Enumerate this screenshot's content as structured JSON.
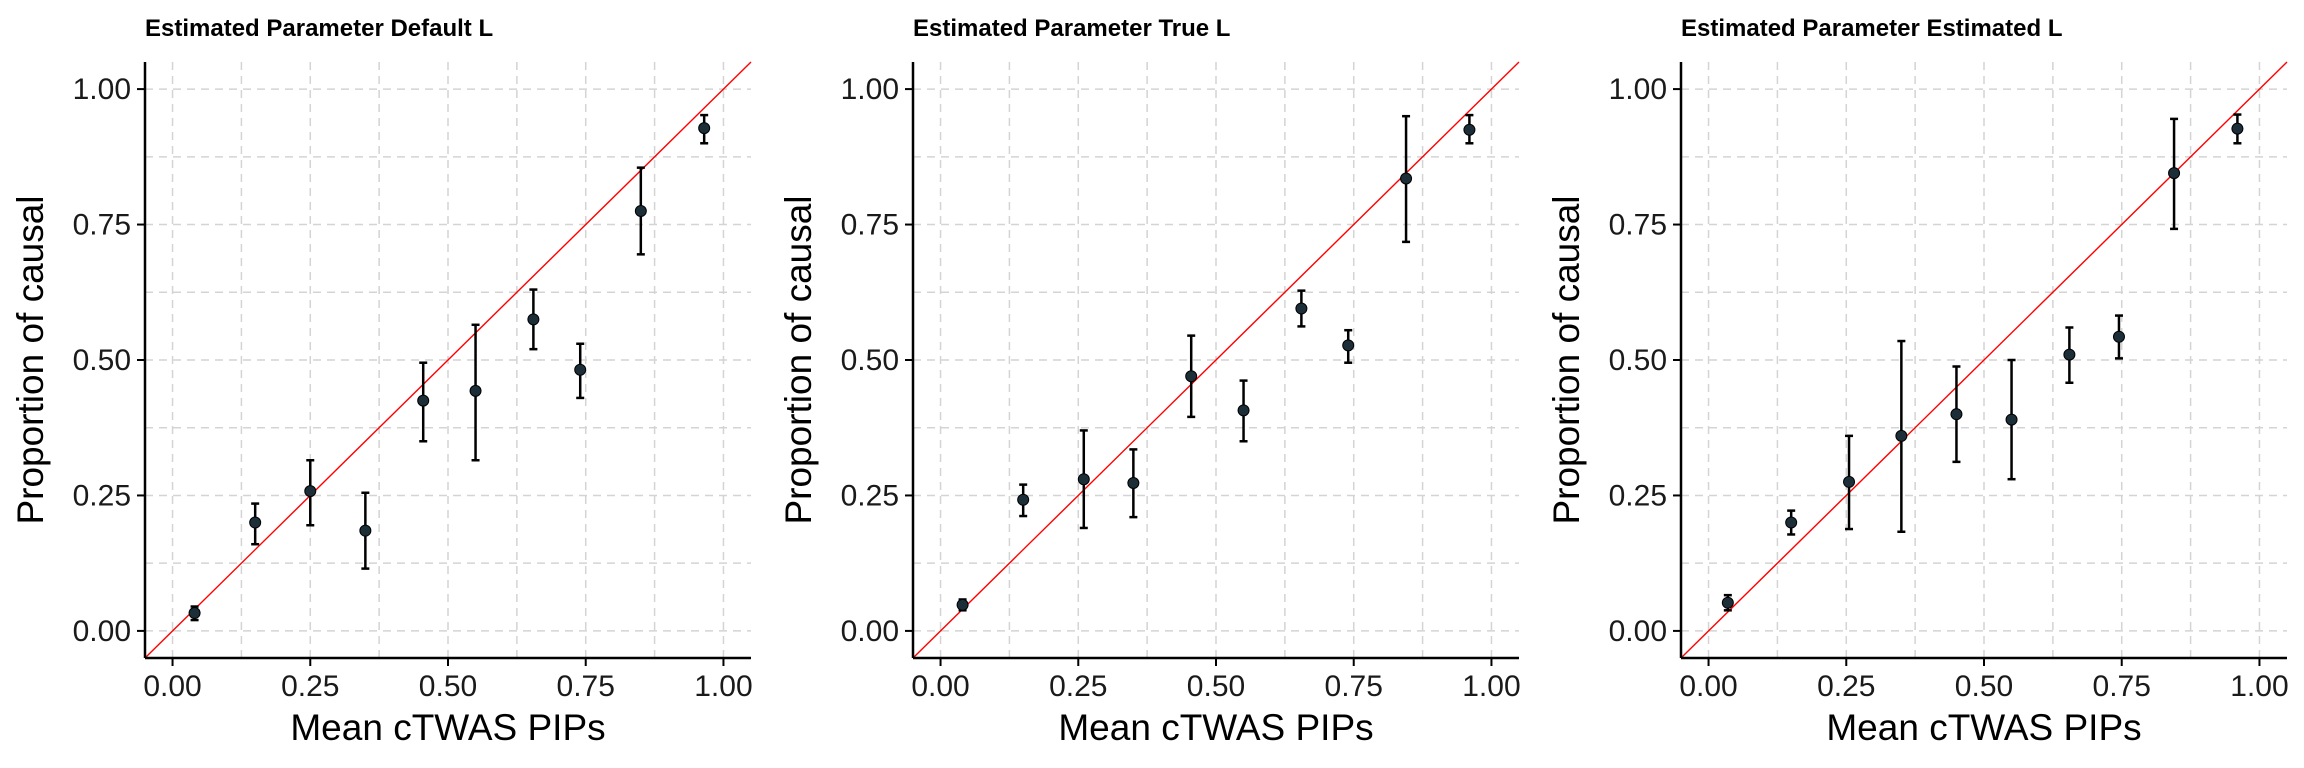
{
  "chart_data": [
    {
      "type": "scatter",
      "title": "Estimated Parameter Default L",
      "xlabel": "Mean cTWAS PIPs",
      "ylabel": "Proportion of causal",
      "xlim": [
        -0.05,
        1.05
      ],
      "ylim": [
        -0.05,
        1.05
      ],
      "xticks": [
        "0.00",
        "0.25",
        "0.50",
        "0.75",
        "1.00"
      ],
      "yticks": [
        "0.00",
        "0.25",
        "0.50",
        "0.75",
        "1.00"
      ],
      "reference_line": "y = x",
      "points": [
        {
          "x": 0.04,
          "y": 0.033,
          "lo": 0.02,
          "hi": 0.045
        },
        {
          "x": 0.15,
          "y": 0.2,
          "lo": 0.16,
          "hi": 0.235
        },
        {
          "x": 0.25,
          "y": 0.258,
          "lo": 0.195,
          "hi": 0.315
        },
        {
          "x": 0.35,
          "y": 0.185,
          "lo": 0.115,
          "hi": 0.255
        },
        {
          "x": 0.455,
          "y": 0.425,
          "lo": 0.35,
          "hi": 0.495
        },
        {
          "x": 0.55,
          "y": 0.443,
          "lo": 0.315,
          "hi": 0.565
        },
        {
          "x": 0.655,
          "y": 0.575,
          "lo": 0.52,
          "hi": 0.63
        },
        {
          "x": 0.74,
          "y": 0.482,
          "lo": 0.43,
          "hi": 0.53
        },
        {
          "x": 0.85,
          "y": 0.775,
          "lo": 0.695,
          "hi": 0.855
        },
        {
          "x": 0.965,
          "y": 0.928,
          "lo": 0.9,
          "hi": 0.952
        }
      ]
    },
    {
      "type": "scatter",
      "title": "Estimated Parameter True L",
      "xlabel": "Mean cTWAS PIPs",
      "ylabel": "Proportion of causal",
      "xlim": [
        -0.05,
        1.05
      ],
      "ylim": [
        -0.05,
        1.05
      ],
      "xticks": [
        "0.00",
        "0.25",
        "0.50",
        "0.75",
        "1.00"
      ],
      "yticks": [
        "0.00",
        "0.25",
        "0.50",
        "0.75",
        "1.00"
      ],
      "reference_line": "y = x",
      "points": [
        {
          "x": 0.04,
          "y": 0.048,
          "lo": 0.038,
          "hi": 0.058
        },
        {
          "x": 0.15,
          "y": 0.242,
          "lo": 0.212,
          "hi": 0.27
        },
        {
          "x": 0.26,
          "y": 0.28,
          "lo": 0.19,
          "hi": 0.37
        },
        {
          "x": 0.35,
          "y": 0.273,
          "lo": 0.21,
          "hi": 0.335
        },
        {
          "x": 0.455,
          "y": 0.47,
          "lo": 0.395,
          "hi": 0.545
        },
        {
          "x": 0.55,
          "y": 0.407,
          "lo": 0.35,
          "hi": 0.462
        },
        {
          "x": 0.655,
          "y": 0.595,
          "lo": 0.562,
          "hi": 0.628
        },
        {
          "x": 0.74,
          "y": 0.527,
          "lo": 0.495,
          "hi": 0.555
        },
        {
          "x": 0.845,
          "y": 0.835,
          "lo": 0.718,
          "hi": 0.95
        },
        {
          "x": 0.96,
          "y": 0.925,
          "lo": 0.9,
          "hi": 0.952
        }
      ]
    },
    {
      "type": "scatter",
      "title": "Estimated Parameter Estimated L",
      "xlabel": "Mean cTWAS PIPs",
      "ylabel": "Proportion of causal",
      "xlim": [
        -0.05,
        1.05
      ],
      "ylim": [
        -0.05,
        1.05
      ],
      "xticks": [
        "0.00",
        "0.25",
        "0.50",
        "0.75",
        "1.00"
      ],
      "yticks": [
        "0.00",
        "0.25",
        "0.50",
        "0.75",
        "1.00"
      ],
      "reference_line": "y = x",
      "points": [
        {
          "x": 0.035,
          "y": 0.052,
          "lo": 0.038,
          "hi": 0.066
        },
        {
          "x": 0.15,
          "y": 0.2,
          "lo": 0.178,
          "hi": 0.222
        },
        {
          "x": 0.255,
          "y": 0.275,
          "lo": 0.188,
          "hi": 0.36
        },
        {
          "x": 0.35,
          "y": 0.36,
          "lo": 0.183,
          "hi": 0.535
        },
        {
          "x": 0.45,
          "y": 0.4,
          "lo": 0.312,
          "hi": 0.488
        },
        {
          "x": 0.55,
          "y": 0.39,
          "lo": 0.28,
          "hi": 0.5
        },
        {
          "x": 0.655,
          "y": 0.51,
          "lo": 0.458,
          "hi": 0.56
        },
        {
          "x": 0.745,
          "y": 0.543,
          "lo": 0.503,
          "hi": 0.582
        },
        {
          "x": 0.845,
          "y": 0.845,
          "lo": 0.742,
          "hi": 0.945
        },
        {
          "x": 0.96,
          "y": 0.927,
          "lo": 0.9,
          "hi": 0.953
        }
      ]
    }
  ]
}
